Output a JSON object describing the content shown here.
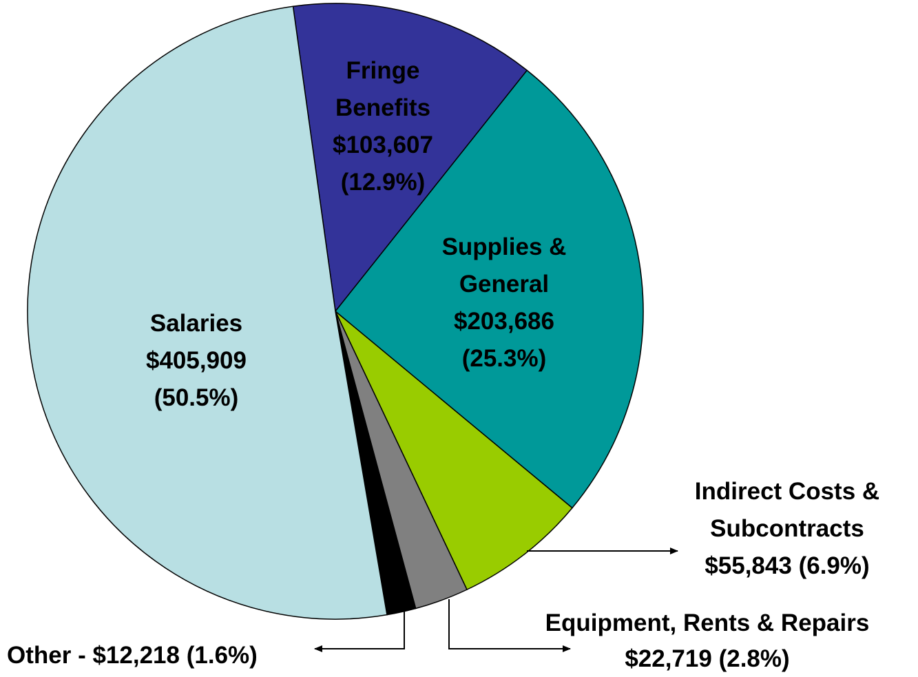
{
  "chart_data": {
    "type": "pie",
    "categories": [
      "Fringe Benefits",
      "Supplies & General",
      "Indirect Costs & Subcontracts",
      "Equipment, Rents & Repairs",
      "Other -",
      "Salaries"
    ],
    "values": [
      103607,
      203686,
      55843,
      22719,
      12218,
      405909
    ],
    "value_labels": [
      "$103,607",
      "$203,686",
      "$55,843",
      "$22,719",
      "$12,218",
      "$405,909"
    ],
    "percentages": [
      12.9,
      25.3,
      6.9,
      2.8,
      1.6,
      50.5
    ],
    "percentage_labels": [
      "(12.9%)",
      "(25.3%)",
      "(6.9%)",
      "(2.8%)",
      "(1.6%)",
      "(50.5%)"
    ],
    "colors": [
      "#333399",
      "#009999",
      "#99cc00",
      "#808080",
      "#000000",
      "#b8dfe3"
    ]
  }
}
